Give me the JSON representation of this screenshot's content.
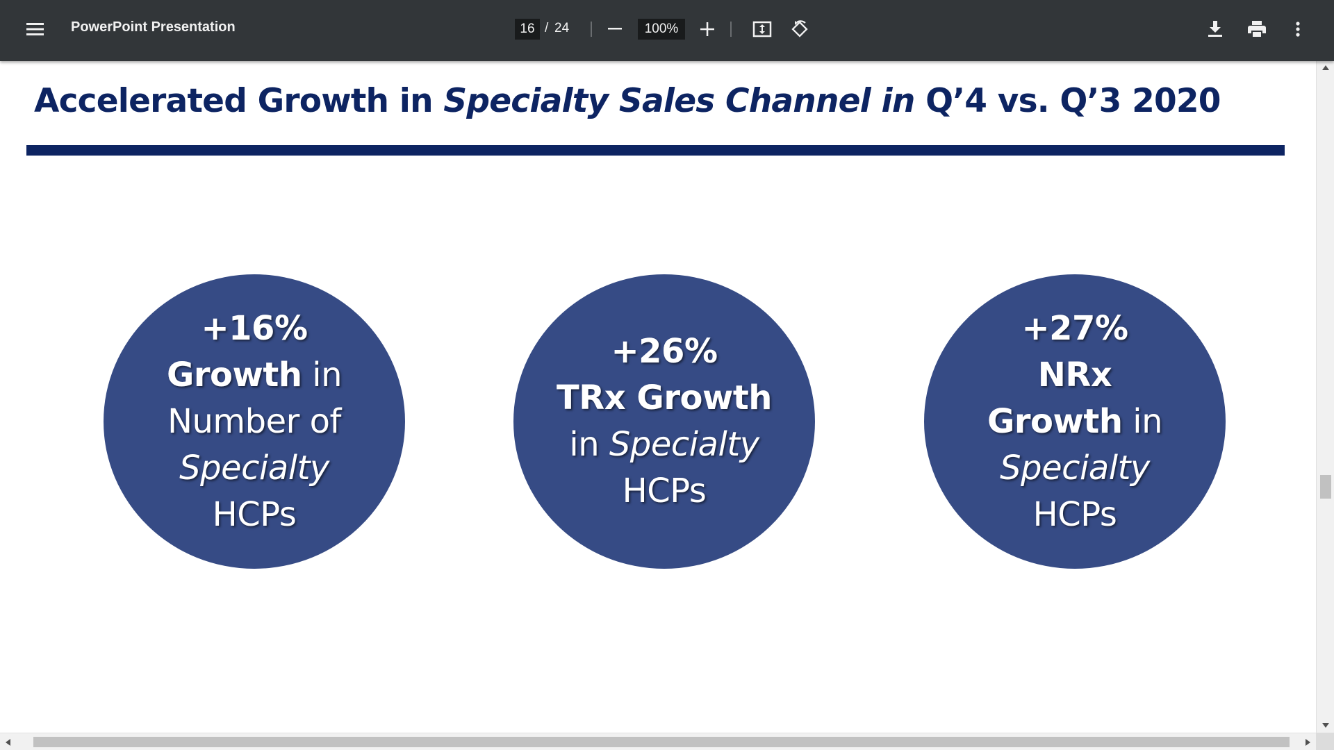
{
  "toolbar": {
    "menu_icon": "hamburger-menu-icon",
    "title": "PowerPoint Presentation",
    "page_current": "16",
    "page_separator": "/",
    "page_total": "24",
    "zoom_out_icon": "minus-icon",
    "zoom_level": "100%",
    "zoom_in_icon": "plus-icon",
    "fit_icon": "fit-to-page-icon",
    "rotate_icon": "rotate-counterclockwise-icon",
    "download_icon": "download-icon",
    "print_icon": "print-icon",
    "more_icon": "more-vertical-icon",
    "background_color": "#323639"
  },
  "slide": {
    "title_part1": "Accelerated Growth in ",
    "title_italic": "Specialty Sales Channel in",
    "title_part2": " Q’4 vs. Q’3 2020",
    "title_color": "#0d2462",
    "circle_color": "#364b85",
    "circles": [
      {
        "line1": "+16%",
        "line2_bold": "Growth",
        "line2_rest": " in",
        "line3": "Number of",
        "line4_italic": "Specialty",
        "line5": "HCPs"
      },
      {
        "line1": "+26%",
        "line2_bold": "TRx Growth",
        "line3_plain": "in ",
        "line3_italic": "Specialty",
        "line4": "HCPs"
      },
      {
        "line1": "+27%",
        "line2_bold": "NRx",
        "line3_bold": "Growth",
        "line3_rest": " in",
        "line4_italic": "Specialty",
        "line5": "HCPs"
      }
    ]
  }
}
